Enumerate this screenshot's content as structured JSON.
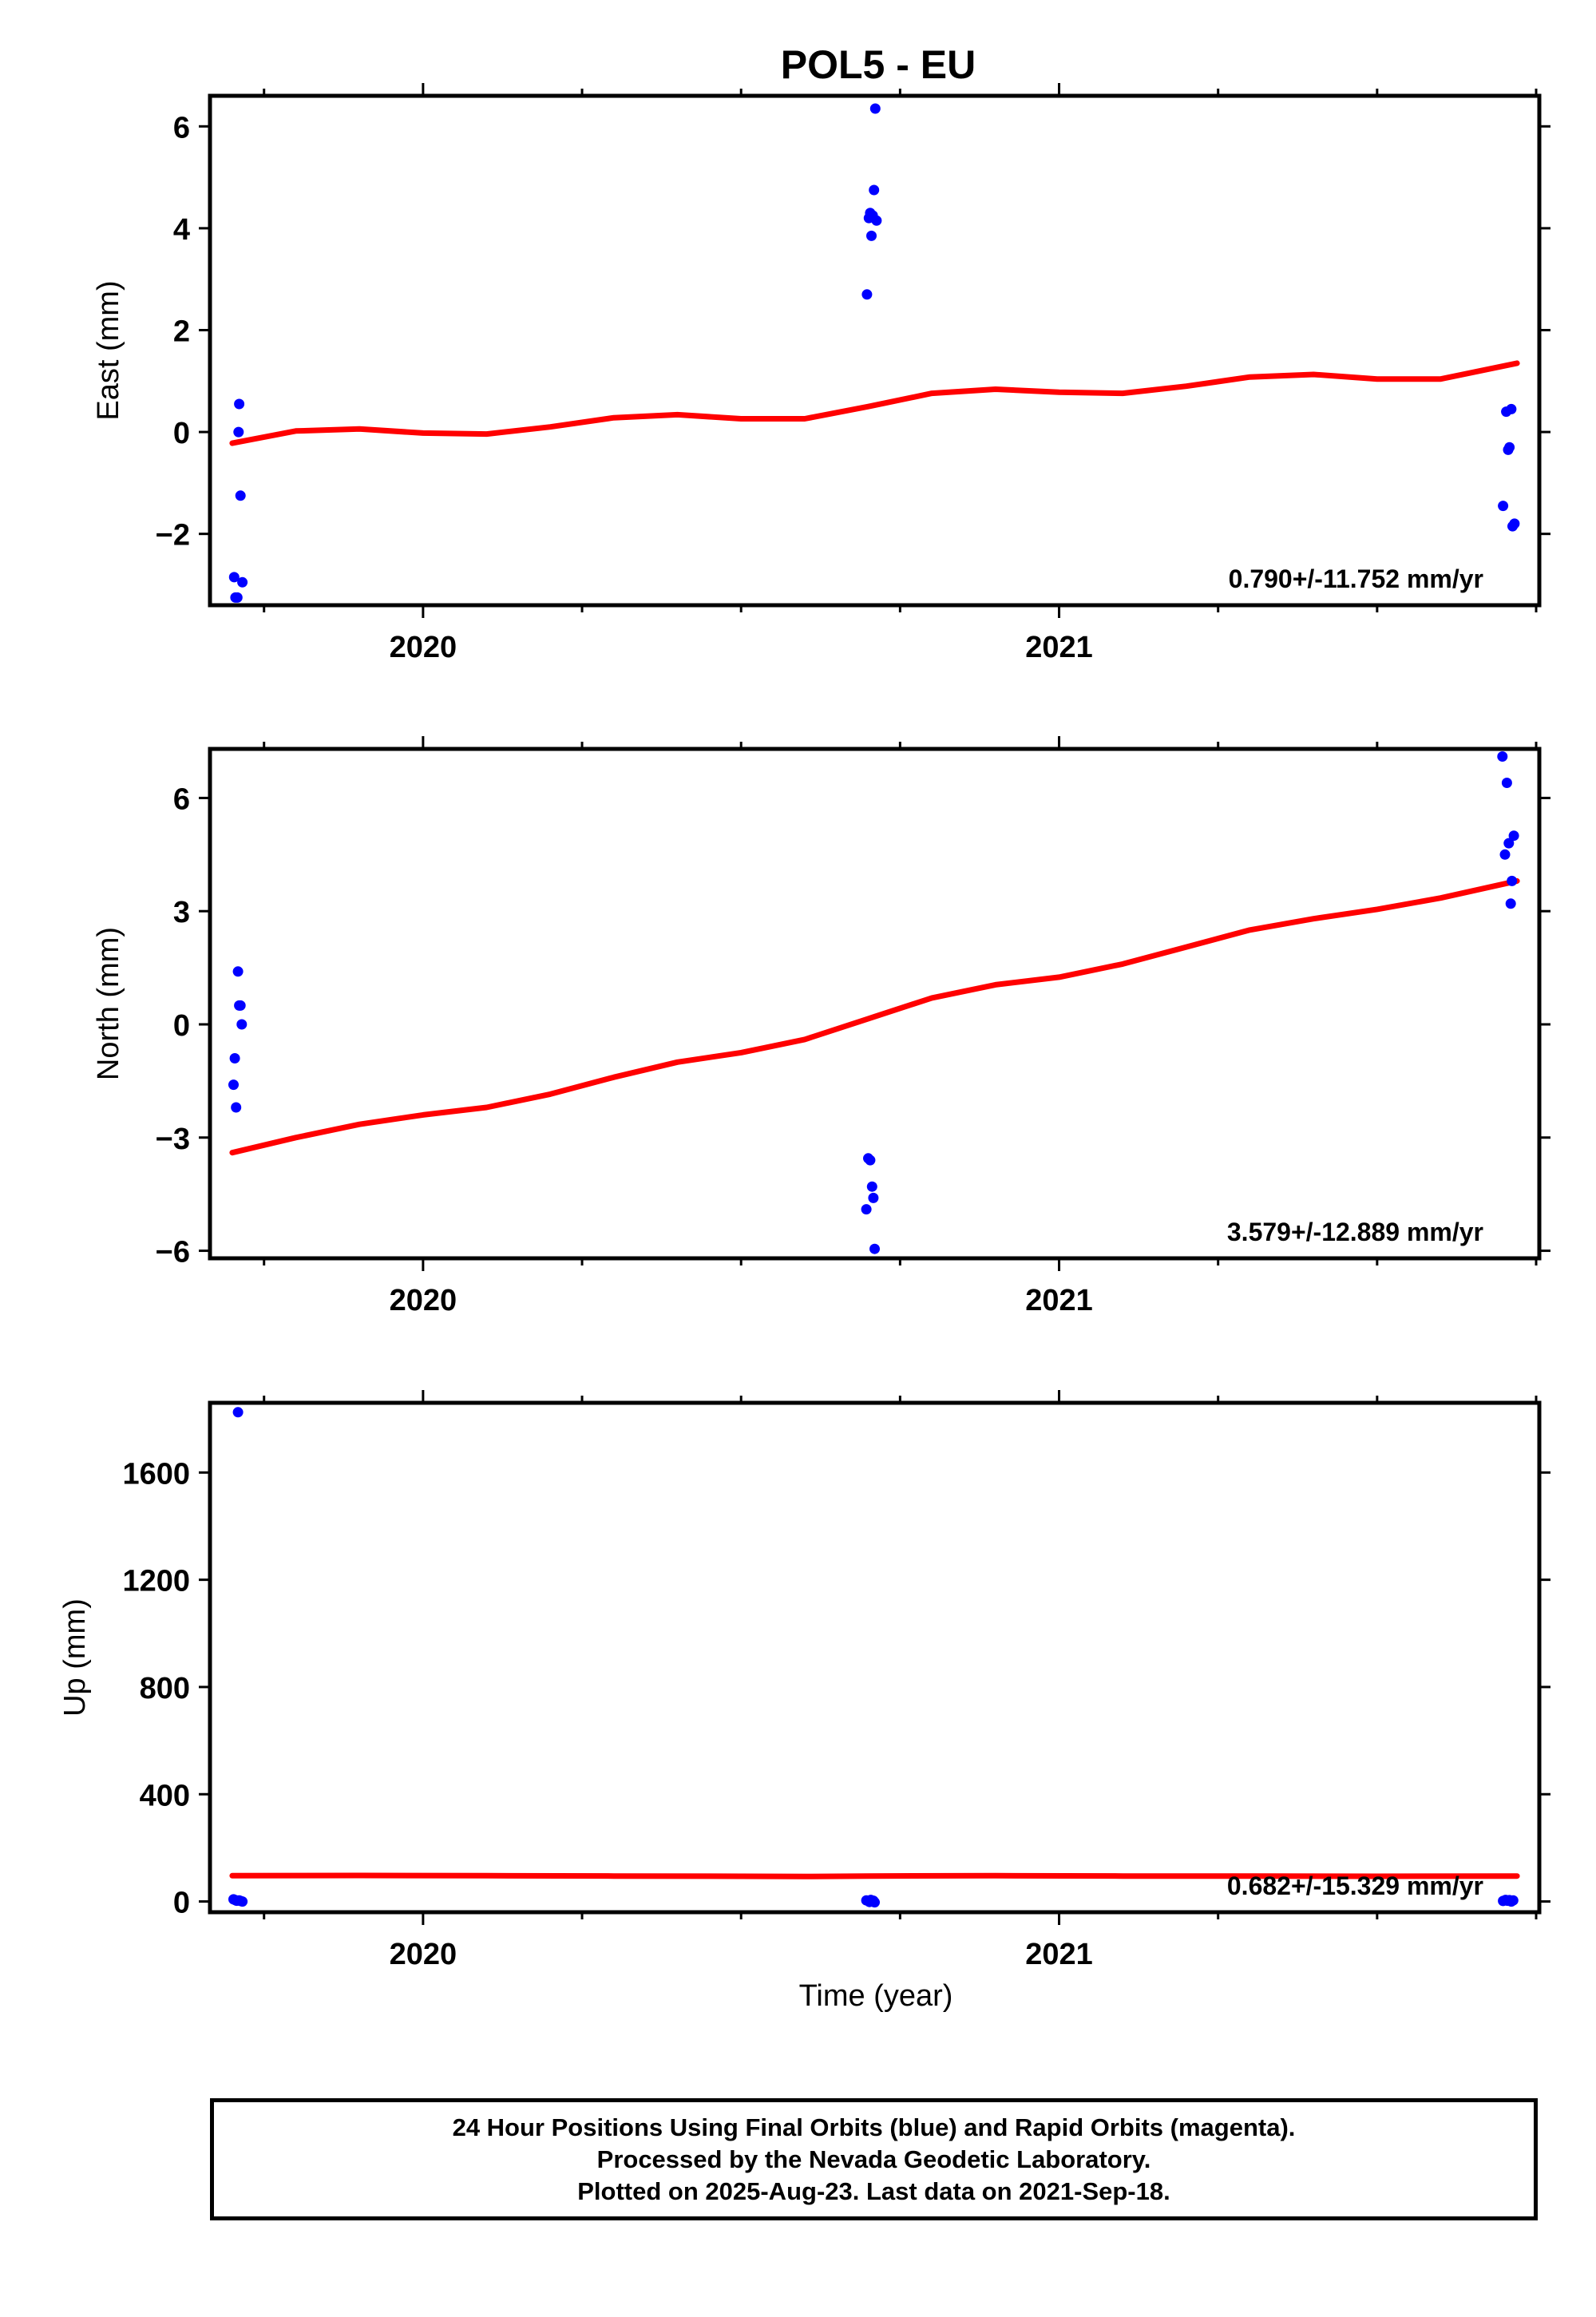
{
  "title": "POL5 - EU",
  "xlabel": "Time (year)",
  "footer": {
    "line1": "24 Hour Positions Using Final Orbits (blue) and Rapid Orbits (magenta).",
    "line2": "Processed by the Nevada Geodetic Laboratory.",
    "line3": "Plotted on 2025-Aug-23. Last data on 2021-Sep-18."
  },
  "colors": {
    "points": "#0000ff",
    "fit": "#ff0000",
    "axes": "#000000"
  },
  "chart_data": [
    {
      "type": "scatter",
      "ylabel": "East (mm)",
      "rate_text": "0.790+/-11.752 mm/yr",
      "xlim": [
        2019.665,
        2021.755
      ],
      "ylim": [
        -3.4,
        6.6
      ],
      "yticks": [
        -2,
        0,
        2,
        4,
        6
      ],
      "xticks": [
        2020,
        2021
      ],
      "tick_labels_y": [
        "−2",
        "0",
        "2",
        "4",
        "6"
      ],
      "tick_labels_x": [
        "2020",
        "2021"
      ],
      "points": [
        [
          2019.703,
          -2.85
        ],
        [
          2019.705,
          -3.25
        ],
        [
          2019.708,
          -3.25
        ],
        [
          2019.71,
          0.0
        ],
        [
          2019.711,
          0.55
        ],
        [
          2019.713,
          -1.25
        ],
        [
          2019.716,
          -2.95
        ],
        [
          2020.698,
          2.7
        ],
        [
          2020.701,
          4.2
        ],
        [
          2020.703,
          4.3
        ],
        [
          2020.705,
          3.85
        ],
        [
          2020.707,
          4.25
        ],
        [
          2020.709,
          4.75
        ],
        [
          2020.711,
          6.35
        ],
        [
          2020.713,
          4.15
        ],
        [
          2021.698,
          -1.45
        ],
        [
          2021.703,
          0.4
        ],
        [
          2021.706,
          -0.35
        ],
        [
          2021.708,
          -0.3
        ],
        [
          2021.711,
          0.45
        ],
        [
          2021.713,
          -1.85
        ],
        [
          2021.716,
          -1.8
        ]
      ],
      "fit": [
        [
          2019.7,
          -0.22
        ],
        [
          2019.8,
          0.02
        ],
        [
          2019.9,
          0.06
        ],
        [
          2020.0,
          -0.02
        ],
        [
          2020.1,
          -0.04
        ],
        [
          2020.2,
          0.1
        ],
        [
          2020.3,
          0.28
        ],
        [
          2020.4,
          0.34
        ],
        [
          2020.5,
          0.26
        ],
        [
          2020.6,
          0.26
        ],
        [
          2020.7,
          0.5
        ],
        [
          2020.8,
          0.76
        ],
        [
          2020.9,
          0.84
        ],
        [
          2021.0,
          0.78
        ],
        [
          2021.1,
          0.76
        ],
        [
          2021.2,
          0.9
        ],
        [
          2021.3,
          1.08
        ],
        [
          2021.4,
          1.13
        ],
        [
          2021.5,
          1.04
        ],
        [
          2021.6,
          1.04
        ],
        [
          2021.72,
          1.35
        ]
      ]
    },
    {
      "type": "scatter",
      "ylabel": "North (mm)",
      "rate_text": "3.579+/-12.889 mm/yr",
      "xlim": [
        2019.665,
        2021.755
      ],
      "ylim": [
        -6.2,
        7.3
      ],
      "yticks": [
        -6,
        -3,
        0,
        3,
        6
      ],
      "xticks": [
        2020,
        2021
      ],
      "tick_labels_y": [
        "−6",
        "−3",
        "0",
        "3",
        "6"
      ],
      "tick_labels_x": [
        "2020",
        "2021"
      ],
      "points": [
        [
          2019.702,
          -1.6
        ],
        [
          2019.704,
          -0.9
        ],
        [
          2019.706,
          -2.2
        ],
        [
          2019.709,
          1.4
        ],
        [
          2019.711,
          0.5
        ],
        [
          2019.713,
          0.5
        ],
        [
          2019.715,
          0.0
        ],
        [
          2020.697,
          -4.9
        ],
        [
          2020.7,
          -3.55
        ],
        [
          2020.703,
          -3.6
        ],
        [
          2020.706,
          -4.3
        ],
        [
          2020.708,
          -4.6
        ],
        [
          2020.71,
          -5.95
        ],
        [
          2021.697,
          7.1
        ],
        [
          2021.701,
          4.5
        ],
        [
          2021.704,
          6.4
        ],
        [
          2021.707,
          4.8
        ],
        [
          2021.71,
          3.2
        ],
        [
          2021.712,
          3.8
        ],
        [
          2021.715,
          5.0
        ]
      ],
      "fit": [
        [
          2019.7,
          -3.4
        ],
        [
          2019.8,
          -3.0
        ],
        [
          2019.9,
          -2.65
        ],
        [
          2020.0,
          -2.4
        ],
        [
          2020.1,
          -2.2
        ],
        [
          2020.2,
          -1.85
        ],
        [
          2020.3,
          -1.4
        ],
        [
          2020.4,
          -1.0
        ],
        [
          2020.5,
          -0.75
        ],
        [
          2020.6,
          -0.4
        ],
        [
          2020.7,
          0.15
        ],
        [
          2020.8,
          0.7
        ],
        [
          2020.9,
          1.05
        ],
        [
          2021.0,
          1.25
        ],
        [
          2021.1,
          1.6
        ],
        [
          2021.2,
          2.05
        ],
        [
          2021.3,
          2.5
        ],
        [
          2021.4,
          2.8
        ],
        [
          2021.5,
          3.05
        ],
        [
          2021.6,
          3.35
        ],
        [
          2021.72,
          3.8
        ]
      ]
    },
    {
      "type": "scatter",
      "ylabel": "Up (mm)",
      "rate_text": "0.682+/-15.329 mm/yr",
      "xlim": [
        2019.665,
        2021.755
      ],
      "ylim": [
        -40,
        1860
      ],
      "yticks": [
        0,
        400,
        800,
        1200,
        1600
      ],
      "xticks": [
        2020,
        2021
      ],
      "tick_labels_y": [
        "0",
        "400",
        "800",
        "1200",
        "1600"
      ],
      "tick_labels_x": [
        "2020",
        "2021"
      ],
      "points": [
        [
          2019.702,
          8
        ],
        [
          2019.705,
          5
        ],
        [
          2019.707,
          3
        ],
        [
          2019.709,
          1825
        ],
        [
          2019.711,
          4
        ],
        [
          2019.713,
          2
        ],
        [
          2019.716,
          0
        ],
        [
          2020.697,
          4
        ],
        [
          2020.7,
          2
        ],
        [
          2020.702,
          -2
        ],
        [
          2020.704,
          6
        ],
        [
          2020.706,
          0
        ],
        [
          2020.708,
          3
        ],
        [
          2020.71,
          -3
        ],
        [
          2021.698,
          2
        ],
        [
          2021.702,
          6
        ],
        [
          2021.705,
          3
        ],
        [
          2021.708,
          5
        ],
        [
          2021.711,
          0
        ],
        [
          2021.714,
          4
        ]
      ],
      "fit": [
        [
          2019.7,
          96
        ],
        [
          2019.9,
          97
        ],
        [
          2020.1,
          96
        ],
        [
          2020.3,
          95
        ],
        [
          2020.5,
          94
        ],
        [
          2020.6,
          93
        ],
        [
          2020.7,
          95
        ],
        [
          2020.9,
          96
        ],
        [
          2021.1,
          95
        ],
        [
          2021.3,
          95
        ],
        [
          2021.5,
          94
        ],
        [
          2021.72,
          95
        ]
      ]
    }
  ]
}
